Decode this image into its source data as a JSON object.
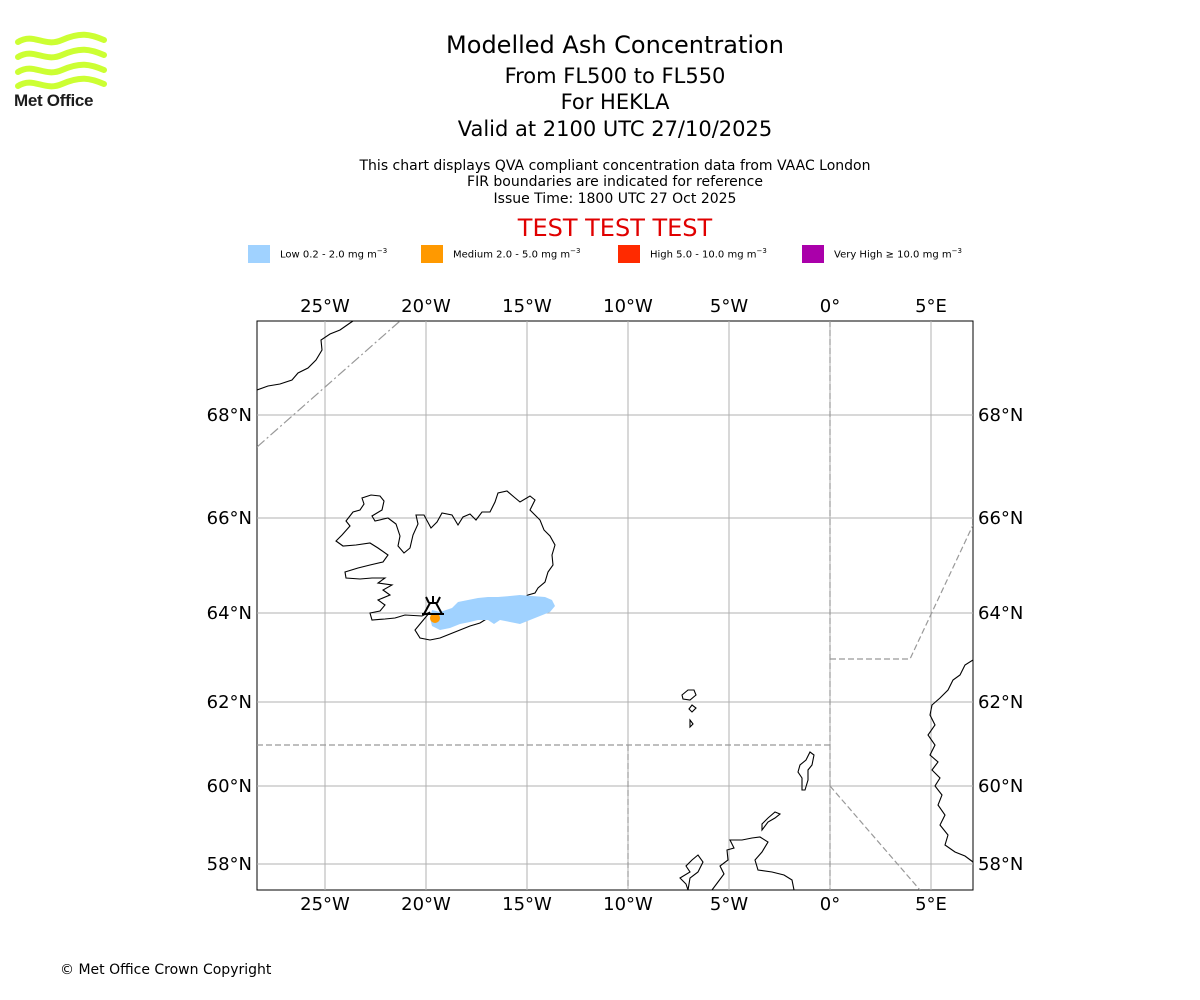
{
  "branding": {
    "logo_text": "Met Office",
    "logo_color": "#ccff33"
  },
  "titles": {
    "line1": "Modelled Ash Concentration",
    "line2": "From FL500 to FL550",
    "line3": "For HEKLA",
    "line4": "Valid at 2100 UTC 27/10/2025"
  },
  "subtitles": {
    "line1": "This chart displays QVA compliant concentration data from VAAC London",
    "line2": "FIR boundaries are indicated for reference",
    "line3": "Issue Time: 1800 UTC 27 Oct 2025"
  },
  "test_banner": "TEST TEST TEST",
  "legend": [
    {
      "label": "Low 0.2 - 2.0 mg m",
      "sup": "−3",
      "color": "#a0d2ff"
    },
    {
      "label": "Medium 2.0 - 5.0 mg m",
      "sup": "−3",
      "color": "#ff9900"
    },
    {
      "label": "High 5.0 - 10.0 mg m",
      "sup": "−3",
      "color": "#ff2a00"
    },
    {
      "label": "Very High  ≥  10.0 mg m",
      "sup": "−3",
      "color": "#aa00aa"
    }
  ],
  "map": {
    "lon_ticks": [
      "25°W",
      "20°W",
      "15°W",
      "10°W",
      "5°W",
      "0°",
      "5°E"
    ],
    "lat_ticks": [
      "68°N",
      "66°N",
      "64°N",
      "62°N",
      "60°N",
      "58°N"
    ],
    "volcano": {
      "name_icon": "volcano-icon"
    }
  },
  "copyright": "© Met Office Crown Copyright"
}
